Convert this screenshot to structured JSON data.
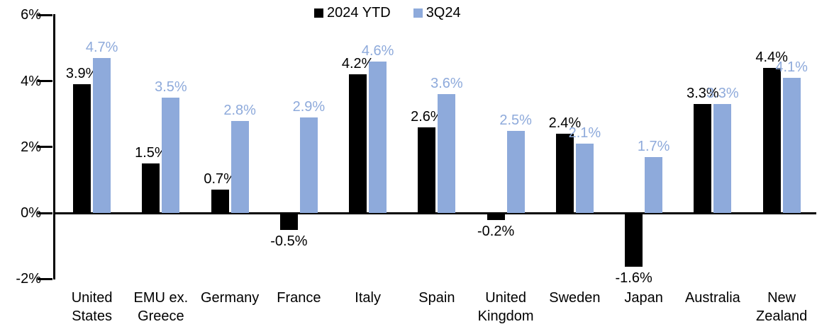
{
  "chart_data": {
    "type": "bar",
    "title": "",
    "xlabel": "",
    "ylabel": "",
    "categories": [
      "United States",
      "EMU ex. Greece",
      "Germany",
      "France",
      "Italy",
      "Spain",
      "United Kingdom",
      "Sweden",
      "Japan",
      "Australia",
      "New Zealand"
    ],
    "series": [
      {
        "name": "2024 YTD",
        "color": "#000000",
        "values": [
          3.9,
          1.5,
          0.7,
          -0.5,
          4.2,
          2.6,
          -0.2,
          2.4,
          -1.6,
          3.3,
          4.4
        ],
        "labels": [
          "3.9%",
          "1.5%",
          "0.7%",
          "-0.5%",
          "4.2%",
          "2.6%",
          "-0.2%",
          "2.4%",
          "-1.6%",
          "3.3%",
          "4.4%"
        ]
      },
      {
        "name": "3Q24",
        "color": "#8EAADB",
        "values": [
          4.7,
          3.5,
          2.8,
          2.9,
          4.6,
          3.6,
          2.5,
          2.1,
          1.7,
          3.3,
          4.1
        ],
        "labels": [
          "4.7%",
          "3.5%",
          "2.8%",
          "2.9%",
          "4.6%",
          "3.6%",
          "2.5%",
          "2.1%",
          "1.7%",
          "3.3%",
          "4.1%"
        ]
      }
    ],
    "yticks": [
      {
        "value": 6,
        "label": "6%"
      },
      {
        "value": 4,
        "label": "4%"
      },
      {
        "value": 2,
        "label": "2%"
      },
      {
        "value": 0,
        "label": "0%"
      },
      {
        "value": -2,
        "label": "-2%"
      }
    ],
    "ylim": [
      -2,
      6
    ],
    "grid": false,
    "legend_position": "top-center",
    "axis_color": "#000000"
  }
}
